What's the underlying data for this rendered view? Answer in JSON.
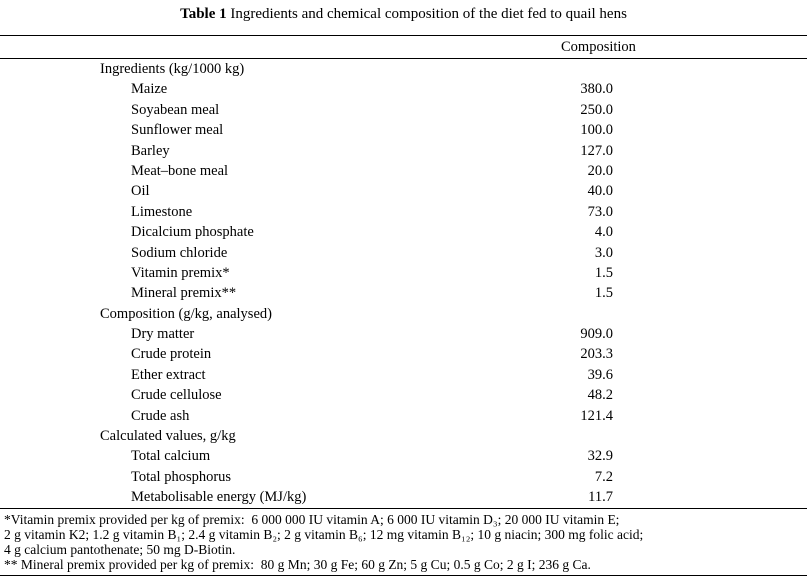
{
  "page": {
    "title_label": "Table 1",
    "title_text": " Ingredients and chemical composition of the diet fed to quail hens"
  },
  "table": {
    "value_header": "Composition",
    "rows": [
      {
        "label": "Ingredients (kg/1000 kg)",
        "value": "",
        "indent": 0
      },
      {
        "label": "Maize",
        "value": "380.0",
        "indent": 1
      },
      {
        "label": "Soyabean meal",
        "value": "250.0",
        "indent": 1
      },
      {
        "label": "Sunflower meal",
        "value": "100.0",
        "indent": 1
      },
      {
        "label": "Barley",
        "value": "127.0",
        "indent": 1
      },
      {
        "label": "Meat–bone meal",
        "value": "20.0",
        "indent": 1
      },
      {
        "label": "Oil",
        "value": "40.0",
        "indent": 1
      },
      {
        "label": "Limestone",
        "value": "73.0",
        "indent": 1
      },
      {
        "label": "Dicalcium phosphate",
        "value": "4.0",
        "indent": 1
      },
      {
        "label": "Sodium chloride",
        "value": "3.0",
        "indent": 1
      },
      {
        "label": "Vitamin premix*",
        "value": "1.5",
        "indent": 1
      },
      {
        "label": "Mineral premix**",
        "value": "1.5",
        "indent": 1
      },
      {
        "label": "Composition (g/kg, analysed)",
        "value": "",
        "indent": 0
      },
      {
        "label": "Dry matter",
        "value": "909.0",
        "indent": 1
      },
      {
        "label": "Crude protein",
        "value": "203.3",
        "indent": 1
      },
      {
        "label": "Ether extract",
        "value": "39.6",
        "indent": 1
      },
      {
        "label": "Crude cellulose",
        "value": "48.2",
        "indent": 1
      },
      {
        "label": "Crude ash",
        "value": "121.4",
        "indent": 1
      },
      {
        "label": "Calculated values, g/kg",
        "value": "",
        "indent": 0
      },
      {
        "label": "Total calcium",
        "value": "32.9",
        "indent": 1
      },
      {
        "label": "Total phosphorus",
        "value": "7.2",
        "indent": 1
      },
      {
        "label": "Metabolisable energy (MJ/kg)",
        "value": "11.7",
        "indent": 1
      }
    ]
  },
  "footnotes": {
    "lines": [
      "*Vitamin premix provided per kg of premix:  6 000 000 IU vitamin A; 6 000 IU vitamin D₃; 20 000 IU vitamin E;",
      "2 g vitamin K2; 1.2 g vitamin B₁; 2.4 g vitamin B₂; 2 g vitamin B₆; 12 mg vitamin B₁₂; 10 g niacin; 300 mg folic acid;",
      "4 g calcium pantothenate; 50 mg D-Biotin.",
      "** Mineral premix provided per kg of premix:  80 g Mn; 30 g Fe; 60 g Zn; 5 g Cu; 0.5 g Co; 2 g I; 236 g Ca."
    ]
  }
}
